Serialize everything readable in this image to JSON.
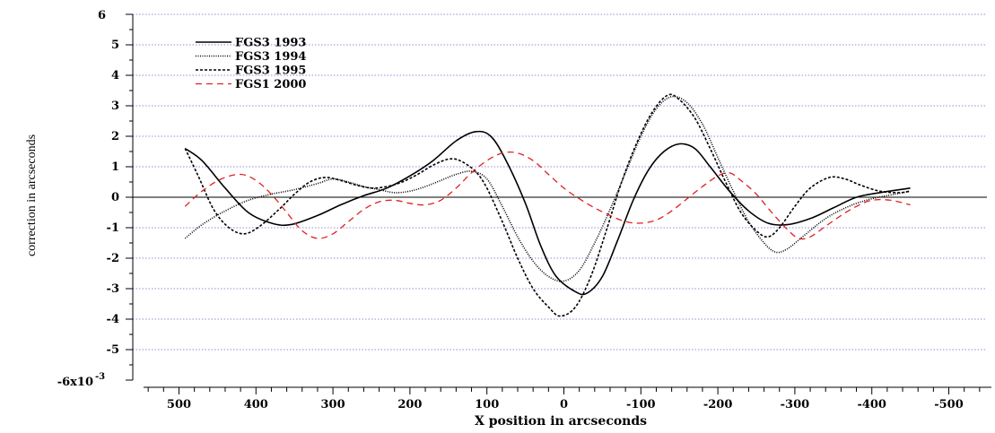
{
  "chart_data": {
    "type": "line",
    "xlabel": "X position in arcseconds",
    "ylabel": "correction in arcseconds",
    "y_top_label": "6",
    "y_bottom_label": "-6x10",
    "y_bottom_exponent": "-3",
    "x_reversed": true,
    "xlim": [
      560,
      -560
    ],
    "ylim": [
      -6,
      6
    ],
    "grid": "horizontal dotted",
    "legend_position": "top-left",
    "x_ticks": [
      {
        "value": 500,
        "label": "500"
      },
      {
        "value": 400,
        "label": "400"
      },
      {
        "value": 300,
        "label": "300"
      },
      {
        "value": 200,
        "label": "200"
      },
      {
        "value": 100,
        "label": "100"
      },
      {
        "value": 0,
        "label": "0"
      },
      {
        "value": -100,
        "label": "-100"
      },
      {
        "value": -200,
        "label": "-200"
      },
      {
        "value": -300,
        "label": "-300"
      },
      {
        "value": -400,
        "label": "-400"
      },
      {
        "value": -500,
        "label": "-500"
      }
    ],
    "y_ticks": [
      {
        "value": 5,
        "label": "5"
      },
      {
        "value": 4,
        "label": "4"
      },
      {
        "value": 3,
        "label": "3"
      },
      {
        "value": 2,
        "label": "2"
      },
      {
        "value": 1,
        "label": "1"
      },
      {
        "value": 0,
        "label": "0"
      },
      {
        "value": -1,
        "label": "-1"
      },
      {
        "value": -2,
        "label": "-2"
      },
      {
        "value": -3,
        "label": "-3"
      },
      {
        "value": -4,
        "label": "-4"
      },
      {
        "value": -5,
        "label": "-5"
      }
    ],
    "series": [
      {
        "name": "FGS3 1993",
        "color": "#000000",
        "dash": "solid",
        "points": [
          [
            492,
            1.6
          ],
          [
            470,
            1.2
          ],
          [
            440,
            0.3
          ],
          [
            410,
            -0.5
          ],
          [
            380,
            -0.85
          ],
          [
            355,
            -0.9
          ],
          [
            320,
            -0.6
          ],
          [
            290,
            -0.25
          ],
          [
            260,
            0.05
          ],
          [
            230,
            0.3
          ],
          [
            200,
            0.7
          ],
          [
            170,
            1.2
          ],
          [
            140,
            1.85
          ],
          [
            115,
            2.15
          ],
          [
            95,
            2.0
          ],
          [
            75,
            1.2
          ],
          [
            50,
            -0.2
          ],
          [
            30,
            -1.6
          ],
          [
            10,
            -2.6
          ],
          [
            -15,
            -3.1
          ],
          [
            -30,
            -3.15
          ],
          [
            -50,
            -2.6
          ],
          [
            -70,
            -1.4
          ],
          [
            -90,
            -0.1
          ],
          [
            -110,
            0.9
          ],
          [
            -130,
            1.5
          ],
          [
            -150,
            1.75
          ],
          [
            -170,
            1.6
          ],
          [
            -190,
            1.0
          ],
          [
            -215,
            0.2
          ],
          [
            -240,
            -0.45
          ],
          [
            -265,
            -0.85
          ],
          [
            -290,
            -0.9
          ],
          [
            -320,
            -0.7
          ],
          [
            -350,
            -0.35
          ],
          [
            -380,
            0.0
          ],
          [
            -410,
            0.15
          ],
          [
            -450,
            0.3
          ]
        ]
      },
      {
        "name": "FGS3  1994",
        "color": "#000000",
        "dash": "dotted",
        "points": [
          [
            492,
            -1.35
          ],
          [
            470,
            -0.9
          ],
          [
            440,
            -0.45
          ],
          [
            410,
            -0.1
          ],
          [
            380,
            0.1
          ],
          [
            350,
            0.25
          ],
          [
            320,
            0.45
          ],
          [
            300,
            0.6
          ],
          [
            280,
            0.5
          ],
          [
            260,
            0.35
          ],
          [
            240,
            0.25
          ],
          [
            220,
            0.15
          ],
          [
            200,
            0.2
          ],
          [
            180,
            0.35
          ],
          [
            160,
            0.55
          ],
          [
            140,
            0.75
          ],
          [
            120,
            0.85
          ],
          [
            100,
            0.6
          ],
          [
            80,
            -0.3
          ],
          [
            60,
            -1.3
          ],
          [
            40,
            -2.1
          ],
          [
            20,
            -2.6
          ],
          [
            0,
            -2.75
          ],
          [
            -20,
            -2.4
          ],
          [
            -40,
            -1.5
          ],
          [
            -60,
            -0.4
          ],
          [
            -80,
            0.8
          ],
          [
            -100,
            2.0
          ],
          [
            -120,
            2.9
          ],
          [
            -140,
            3.3
          ],
          [
            -160,
            3.1
          ],
          [
            -180,
            2.4
          ],
          [
            -200,
            1.3
          ],
          [
            -220,
            0.2
          ],
          [
            -240,
            -0.8
          ],
          [
            -260,
            -1.5
          ],
          [
            -275,
            -1.8
          ],
          [
            -290,
            -1.7
          ],
          [
            -310,
            -1.3
          ],
          [
            -340,
            -0.7
          ],
          [
            -370,
            -0.3
          ],
          [
            -400,
            -0.05
          ],
          [
            -430,
            0.1
          ],
          [
            -450,
            0.2
          ]
        ]
      },
      {
        "name": "FGS3 1995",
        "color": "#000000",
        "dash": "dashed",
        "points": [
          [
            492,
            1.6
          ],
          [
            475,
            0.7
          ],
          [
            455,
            -0.4
          ],
          [
            435,
            -1.0
          ],
          [
            415,
            -1.2
          ],
          [
            395,
            -0.95
          ],
          [
            370,
            -0.4
          ],
          [
            350,
            0.1
          ],
          [
            330,
            0.5
          ],
          [
            310,
            0.65
          ],
          [
            290,
            0.55
          ],
          [
            270,
            0.4
          ],
          [
            250,
            0.3
          ],
          [
            230,
            0.35
          ],
          [
            210,
            0.5
          ],
          [
            190,
            0.75
          ],
          [
            170,
            1.05
          ],
          [
            150,
            1.25
          ],
          [
            135,
            1.2
          ],
          [
            115,
            0.85
          ],
          [
            100,
            0.3
          ],
          [
            80,
            -0.8
          ],
          [
            60,
            -2.0
          ],
          [
            40,
            -3.0
          ],
          [
            20,
            -3.6
          ],
          [
            5,
            -3.9
          ],
          [
            -15,
            -3.6
          ],
          [
            -35,
            -2.6
          ],
          [
            -55,
            -1.1
          ],
          [
            -75,
            0.5
          ],
          [
            -95,
            1.8
          ],
          [
            -115,
            2.8
          ],
          [
            -135,
            3.35
          ],
          [
            -150,
            3.2
          ],
          [
            -170,
            2.6
          ],
          [
            -190,
            1.6
          ],
          [
            -210,
            0.5
          ],
          [
            -230,
            -0.5
          ],
          [
            -250,
            -1.1
          ],
          [
            -265,
            -1.3
          ],
          [
            -280,
            -1.0
          ],
          [
            -300,
            -0.3
          ],
          [
            -320,
            0.3
          ],
          [
            -345,
            0.65
          ],
          [
            -365,
            0.6
          ],
          [
            -385,
            0.4
          ],
          [
            -410,
            0.2
          ],
          [
            -435,
            0.15
          ],
          [
            -450,
            0.2
          ]
        ]
      },
      {
        "name": "FGS1 2000",
        "color": "#e02020",
        "dash": "longdash",
        "points": [
          [
            492,
            -0.3
          ],
          [
            470,
            0.2
          ],
          [
            445,
            0.6
          ],
          [
            420,
            0.75
          ],
          [
            400,
            0.55
          ],
          [
            380,
            0.1
          ],
          [
            360,
            -0.5
          ],
          [
            340,
            -1.1
          ],
          [
            320,
            -1.35
          ],
          [
            300,
            -1.2
          ],
          [
            280,
            -0.8
          ],
          [
            260,
            -0.4
          ],
          [
            240,
            -0.15
          ],
          [
            220,
            -0.1
          ],
          [
            200,
            -0.2
          ],
          [
            180,
            -0.25
          ],
          [
            160,
            -0.1
          ],
          [
            140,
            0.3
          ],
          [
            120,
            0.8
          ],
          [
            100,
            1.2
          ],
          [
            80,
            1.45
          ],
          [
            60,
            1.45
          ],
          [
            40,
            1.2
          ],
          [
            20,
            0.75
          ],
          [
            0,
            0.3
          ],
          [
            -20,
            -0.05
          ],
          [
            -40,
            -0.35
          ],
          [
            -60,
            -0.6
          ],
          [
            -80,
            -0.8
          ],
          [
            -100,
            -0.85
          ],
          [
            -120,
            -0.75
          ],
          [
            -140,
            -0.45
          ],
          [
            -160,
            -0.05
          ],
          [
            -180,
            0.35
          ],
          [
            -200,
            0.7
          ],
          [
            -215,
            0.8
          ],
          [
            -230,
            0.55
          ],
          [
            -250,
            0.1
          ],
          [
            -270,
            -0.5
          ],
          [
            -290,
            -1.05
          ],
          [
            -305,
            -1.35
          ],
          [
            -320,
            -1.3
          ],
          [
            -340,
            -0.95
          ],
          [
            -360,
            -0.6
          ],
          [
            -380,
            -0.3
          ],
          [
            -400,
            -0.1
          ],
          [
            -425,
            -0.1
          ],
          [
            -450,
            -0.25
          ]
        ]
      }
    ]
  }
}
